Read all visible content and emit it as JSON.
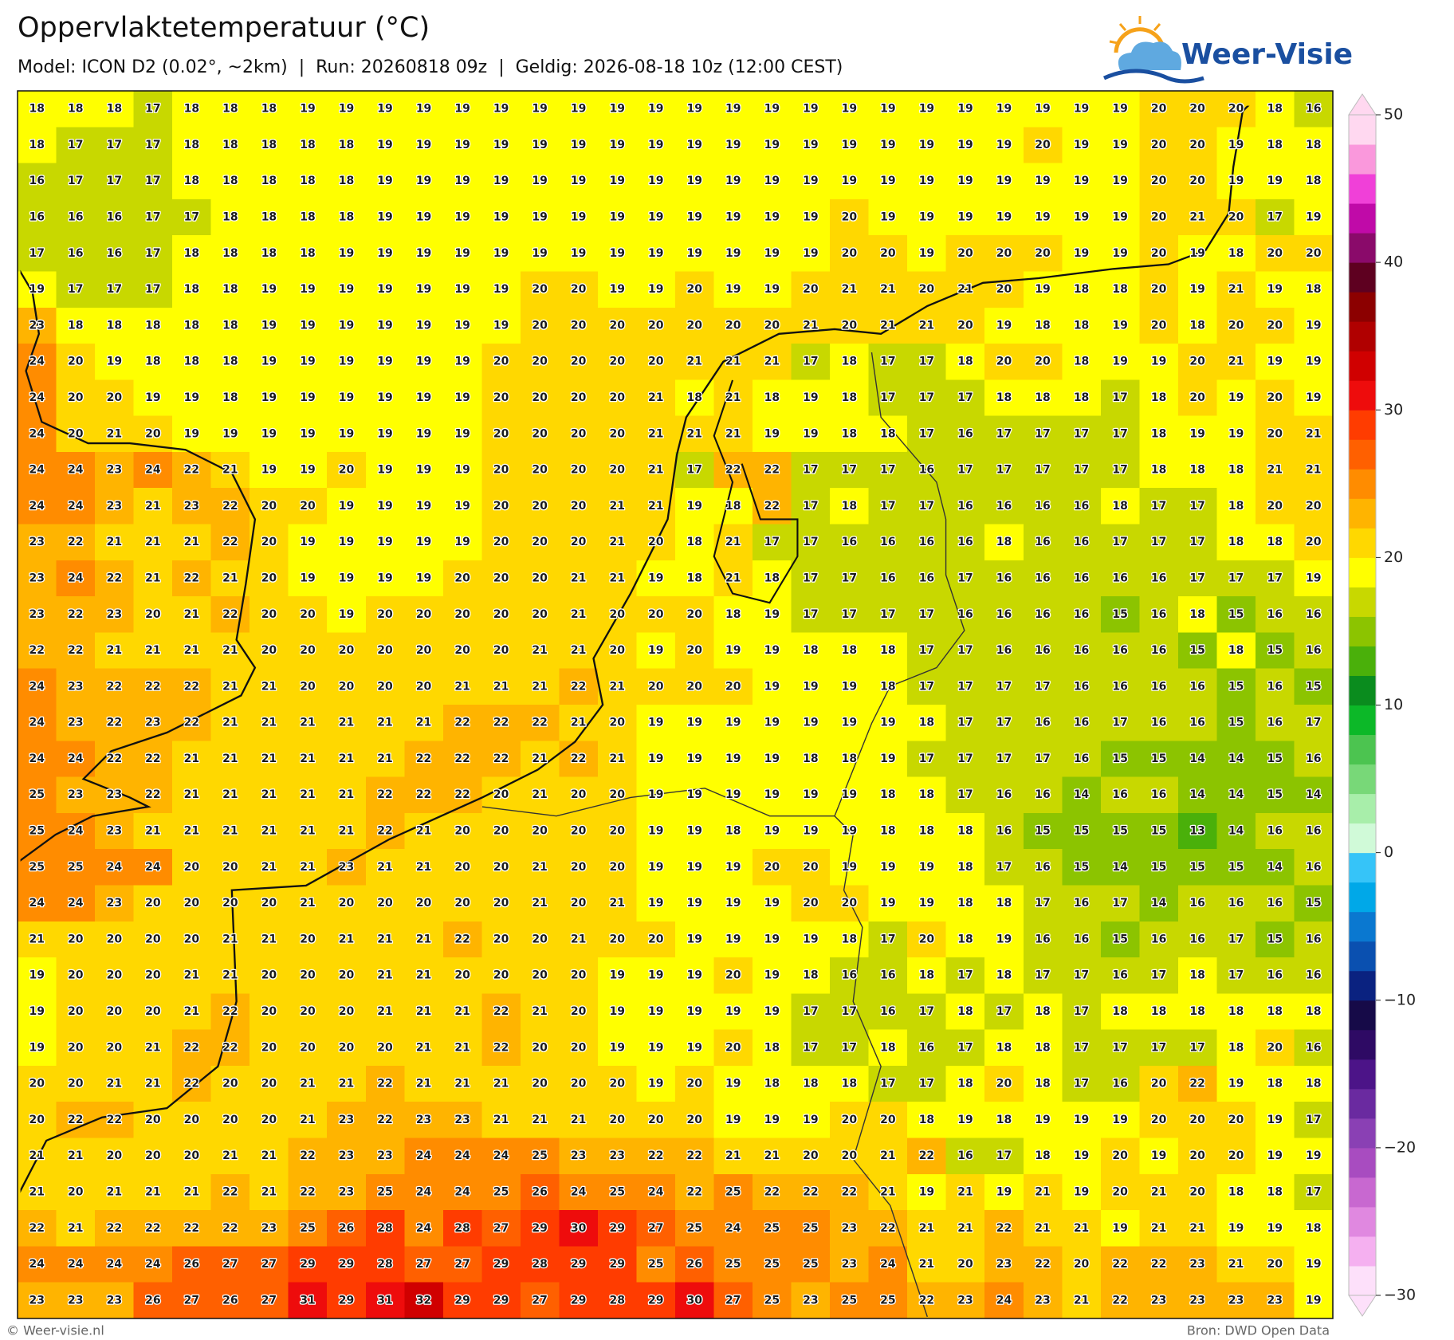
{
  "chart_data": {
    "type": "heatmap",
    "title": "Oppervlaktetemperatuur (°C)",
    "subtitle": "Model: ICON D2 (0.02°, ~2km)  |  Run: 20260818 09z  |  Geldig: 2026-08-18 10z (12:00 CEST)",
    "brand": "Weer-Visie",
    "credit": "© Weer-visie.nl",
    "source": "Bron: DWD Open Data",
    "values": [
      [
        18,
        18,
        18,
        17,
        18,
        18,
        18,
        19,
        19,
        19,
        19,
        19,
        19,
        19,
        19,
        19,
        19,
        19,
        19,
        19,
        19,
        19,
        19,
        19,
        19,
        19,
        19,
        19,
        19,
        20,
        20,
        20,
        18,
        16
      ],
      [
        18,
        17,
        17,
        17,
        18,
        18,
        18,
        18,
        18,
        19,
        19,
        19,
        19,
        19,
        19,
        19,
        19,
        19,
        19,
        19,
        19,
        19,
        19,
        19,
        19,
        19,
        20,
        19,
        19,
        20,
        20,
        19,
        18,
        18
      ],
      [
        16,
        17,
        17,
        17,
        18,
        18,
        18,
        18,
        18,
        19,
        19,
        19,
        19,
        19,
        19,
        19,
        19,
        19,
        19,
        19,
        19,
        19,
        19,
        19,
        19,
        19,
        19,
        19,
        19,
        20,
        20,
        19,
        19,
        18
      ],
      [
        16,
        16,
        16,
        17,
        17,
        18,
        18,
        18,
        18,
        19,
        19,
        19,
        19,
        19,
        19,
        19,
        19,
        19,
        19,
        19,
        19,
        20,
        19,
        19,
        19,
        19,
        19,
        19,
        19,
        20,
        21,
        20,
        17,
        19
      ],
      [
        17,
        16,
        16,
        17,
        18,
        18,
        18,
        18,
        19,
        19,
        19,
        19,
        19,
        19,
        19,
        19,
        19,
        19,
        19,
        19,
        19,
        20,
        20,
        19,
        20,
        20,
        20,
        19,
        19,
        20,
        19,
        18,
        20,
        20
      ],
      [
        19,
        17,
        17,
        17,
        18,
        18,
        19,
        19,
        19,
        19,
        19,
        19,
        19,
        20,
        20,
        19,
        19,
        20,
        19,
        19,
        20,
        21,
        21,
        20,
        21,
        20,
        19,
        18,
        18,
        20,
        19,
        21,
        19,
        18
      ],
      [
        23,
        18,
        18,
        18,
        18,
        18,
        19,
        19,
        19,
        19,
        19,
        19,
        19,
        20,
        20,
        20,
        20,
        20,
        20,
        20,
        21,
        20,
        21,
        21,
        20,
        19,
        18,
        18,
        19,
        20,
        18,
        20,
        20,
        19
      ],
      [
        24,
        20,
        19,
        18,
        18,
        18,
        19,
        19,
        19,
        19,
        19,
        19,
        20,
        20,
        20,
        20,
        20,
        21,
        21,
        21,
        17,
        18,
        17,
        17,
        18,
        20,
        20,
        18,
        19,
        19,
        20,
        21,
        19,
        19
      ],
      [
        24,
        20,
        20,
        19,
        19,
        18,
        19,
        19,
        19,
        19,
        19,
        19,
        20,
        20,
        20,
        20,
        21,
        18,
        21,
        18,
        19,
        18,
        17,
        17,
        17,
        18,
        18,
        18,
        17,
        18,
        20,
        19,
        20,
        19
      ],
      [
        24,
        20,
        21,
        20,
        19,
        19,
        19,
        19,
        19,
        19,
        19,
        19,
        20,
        20,
        20,
        20,
        21,
        21,
        21,
        19,
        19,
        18,
        18,
        17,
        16,
        17,
        17,
        17,
        17,
        18,
        19,
        19,
        20,
        21
      ],
      [
        24,
        24,
        23,
        24,
        22,
        21,
        19,
        19,
        20,
        19,
        19,
        19,
        20,
        20,
        20,
        20,
        21,
        17,
        22,
        22,
        17,
        17,
        17,
        16,
        17,
        17,
        17,
        17,
        17,
        18,
        18,
        18,
        21,
        21
      ],
      [
        24,
        24,
        23,
        21,
        23,
        22,
        20,
        20,
        19,
        19,
        19,
        19,
        20,
        20,
        20,
        21,
        21,
        19,
        18,
        22,
        17,
        18,
        17,
        17,
        16,
        16,
        16,
        16,
        18,
        17,
        17,
        18,
        20,
        20
      ],
      [
        23,
        22,
        21,
        21,
        21,
        22,
        20,
        19,
        19,
        19,
        19,
        19,
        20,
        20,
        20,
        21,
        20,
        18,
        21,
        17,
        17,
        16,
        16,
        16,
        16,
        18,
        16,
        16,
        17,
        17,
        17,
        18,
        18,
        20
      ],
      [
        23,
        24,
        22,
        21,
        22,
        21,
        20,
        19,
        19,
        19,
        19,
        20,
        20,
        20,
        21,
        21,
        19,
        18,
        21,
        18,
        17,
        17,
        16,
        16,
        17,
        16,
        16,
        16,
        16,
        16,
        17,
        17,
        17,
        19
      ],
      [
        23,
        22,
        23,
        20,
        21,
        22,
        20,
        20,
        19,
        20,
        20,
        20,
        20,
        20,
        21,
        20,
        20,
        20,
        18,
        19,
        17,
        17,
        17,
        17,
        16,
        16,
        16,
        16,
        15,
        16,
        18,
        15,
        16,
        16
      ],
      [
        22,
        22,
        21,
        21,
        21,
        21,
        20,
        20,
        20,
        20,
        20,
        20,
        20,
        21,
        21,
        20,
        19,
        20,
        19,
        19,
        18,
        18,
        18,
        17,
        17,
        16,
        16,
        16,
        16,
        16,
        15,
        18,
        15,
        16
      ],
      [
        24,
        23,
        22,
        22,
        22,
        21,
        21,
        20,
        20,
        20,
        20,
        21,
        21,
        21,
        22,
        21,
        20,
        20,
        20,
        19,
        19,
        19,
        18,
        17,
        17,
        17,
        17,
        16,
        16,
        16,
        16,
        15,
        16,
        15
      ],
      [
        24,
        23,
        22,
        23,
        22,
        21,
        21,
        21,
        21,
        21,
        21,
        22,
        22,
        22,
        21,
        20,
        19,
        19,
        19,
        19,
        19,
        19,
        19,
        18,
        17,
        17,
        16,
        16,
        17,
        16,
        16,
        15,
        16,
        17
      ],
      [
        24,
        24,
        22,
        22,
        21,
        21,
        21,
        21,
        21,
        21,
        22,
        22,
        22,
        21,
        22,
        21,
        19,
        19,
        19,
        19,
        18,
        18,
        19,
        17,
        17,
        17,
        17,
        16,
        15,
        15,
        14,
        14,
        15,
        16
      ],
      [
        25,
        23,
        23,
        22,
        21,
        21,
        21,
        21,
        21,
        22,
        22,
        22,
        20,
        21,
        20,
        20,
        19,
        19,
        19,
        19,
        19,
        19,
        18,
        18,
        17,
        16,
        16,
        14,
        16,
        16,
        14,
        14,
        15,
        14
      ],
      [
        25,
        24,
        23,
        21,
        21,
        21,
        21,
        21,
        21,
        22,
        21,
        20,
        20,
        20,
        20,
        20,
        19,
        19,
        18,
        19,
        19,
        19,
        18,
        18,
        18,
        16,
        15,
        15,
        15,
        15,
        13,
        14,
        16,
        16
      ],
      [
        25,
        25,
        24,
        24,
        20,
        20,
        21,
        21,
        23,
        21,
        21,
        20,
        20,
        21,
        20,
        20,
        19,
        19,
        19,
        20,
        20,
        19,
        19,
        19,
        18,
        17,
        16,
        15,
        14,
        15,
        15,
        15,
        14,
        16
      ],
      [
        24,
        24,
        23,
        20,
        20,
        20,
        20,
        21,
        20,
        20,
        20,
        20,
        20,
        21,
        20,
        21,
        19,
        19,
        19,
        19,
        20,
        20,
        19,
        19,
        18,
        18,
        17,
        16,
        17,
        14,
        16,
        16,
        16,
        15
      ],
      [
        21,
        20,
        20,
        20,
        20,
        21,
        21,
        20,
        21,
        21,
        21,
        22,
        20,
        20,
        21,
        20,
        20,
        19,
        19,
        19,
        19,
        18,
        17,
        20,
        18,
        19,
        16,
        16,
        15,
        16,
        16,
        17,
        15,
        16
      ],
      [
        19,
        20,
        20,
        20,
        21,
        21,
        20,
        20,
        20,
        21,
        21,
        20,
        20,
        20,
        20,
        19,
        19,
        19,
        20,
        19,
        18,
        16,
        16,
        18,
        17,
        18,
        17,
        17,
        16,
        17,
        18,
        17,
        16,
        16
      ],
      [
        19,
        20,
        20,
        20,
        21,
        22,
        20,
        20,
        20,
        21,
        21,
        21,
        22,
        21,
        20,
        19,
        19,
        19,
        19,
        19,
        17,
        17,
        16,
        17,
        18,
        17,
        18,
        17,
        18,
        18,
        18,
        18,
        18,
        18
      ],
      [
        19,
        20,
        20,
        21,
        22,
        22,
        20,
        20,
        20,
        20,
        21,
        21,
        22,
        20,
        20,
        19,
        19,
        19,
        20,
        18,
        17,
        17,
        18,
        16,
        17,
        18,
        18,
        17,
        17,
        17,
        17,
        18,
        20,
        16
      ],
      [
        20,
        20,
        21,
        21,
        22,
        20,
        20,
        21,
        21,
        22,
        21,
        21,
        21,
        20,
        20,
        20,
        19,
        20,
        19,
        18,
        18,
        18,
        17,
        17,
        18,
        20,
        18,
        17,
        16,
        20,
        22,
        19,
        18,
        18
      ],
      [
        20,
        22,
        22,
        20,
        20,
        20,
        20,
        21,
        23,
        22,
        23,
        23,
        21,
        21,
        21,
        20,
        20,
        20,
        19,
        19,
        19,
        20,
        20,
        18,
        19,
        18,
        19,
        19,
        19,
        20,
        20,
        20,
        19,
        17
      ],
      [
        21,
        21,
        20,
        20,
        20,
        21,
        21,
        22,
        23,
        23,
        24,
        24,
        24,
        25,
        23,
        23,
        22,
        22,
        21,
        21,
        20,
        20,
        21,
        22,
        16,
        17,
        18,
        19,
        20,
        19,
        20,
        20,
        19,
        19
      ],
      [
        21,
        20,
        21,
        21,
        21,
        22,
        21,
        22,
        23,
        25,
        24,
        24,
        25,
        26,
        24,
        25,
        24,
        22,
        25,
        22,
        22,
        22,
        21,
        19,
        21,
        19,
        21,
        19,
        20,
        21,
        20,
        18,
        18,
        17
      ],
      [
        22,
        21,
        22,
        22,
        22,
        22,
        23,
        25,
        26,
        28,
        24,
        28,
        27,
        29,
        30,
        29,
        27,
        25,
        24,
        25,
        25,
        23,
        22,
        21,
        21,
        22,
        21,
        21,
        19,
        21,
        21,
        19,
        19,
        18
      ],
      [
        24,
        24,
        24,
        24,
        26,
        27,
        27,
        29,
        29,
        28,
        27,
        27,
        29,
        28,
        29,
        29,
        25,
        26,
        25,
        25,
        25,
        23,
        24,
        21,
        20,
        23,
        22,
        20,
        22,
        22,
        23,
        21,
        20,
        19
      ],
      [
        23,
        23,
        23,
        26,
        27,
        26,
        27,
        31,
        29,
        31,
        32,
        29,
        29,
        27,
        29,
        28,
        29,
        30,
        27,
        25,
        23,
        25,
        25,
        22,
        23,
        24,
        23,
        21,
        22,
        23,
        23,
        23,
        23,
        19
      ]
    ],
    "colorbar": {
      "lim": [
        -30,
        50
      ],
      "ticks": [
        50,
        40,
        30,
        20,
        10,
        0,
        {
          "value": -10,
          "label": "−10"
        },
        {
          "value": -20,
          "label": "−20"
        },
        {
          "value": -30,
          "label": "−30"
        }
      ],
      "colors": [
        "#fde0fa",
        "#f5b0f0",
        "#e088e0",
        "#c868d0",
        "#a84cc0",
        "#8a40b4",
        "#6a2aa0",
        "#4c1488",
        "#2e0a64",
        "#160a48",
        "#0a2280",
        "#0a50b0",
        "#0a78d0",
        "#00a8e8",
        "#36c4f8",
        "#d0fad8",
        "#a8eeaa",
        "#78d878",
        "#4cc450",
        "#0cb828",
        "#0a8c1e",
        "#4ab00a",
        "#8cc400",
        "#c8d800",
        "#ffff00",
        "#ffd800",
        "#ffb400",
        "#ff8c00",
        "#ff6000",
        "#ff3c00",
        "#ee0c0c",
        "#d00000",
        "#b00000",
        "#8c0000",
        "#5e0020",
        "#8a0a6a",
        "#c00aa8",
        "#f040d8",
        "#fa98dc",
        "#ffd8f0"
      ]
    }
  }
}
